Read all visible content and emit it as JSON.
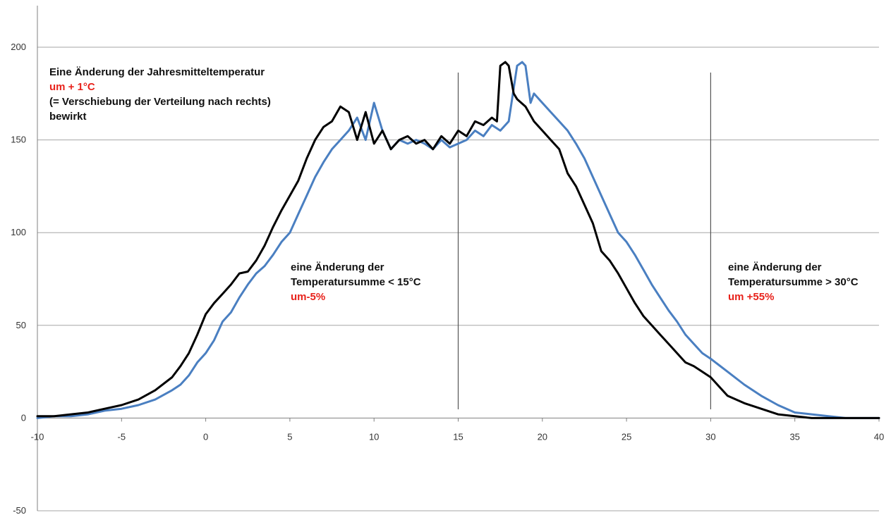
{
  "chart_data": {
    "type": "line",
    "title": "",
    "xlabel": "",
    "ylabel": "",
    "xlim": [
      -10,
      40
    ],
    "ylim": [
      -50,
      200
    ],
    "x_ticks": [
      -10,
      -5,
      0,
      5,
      10,
      15,
      20,
      25,
      30,
      35,
      40
    ],
    "y_ticks": [
      -50,
      0,
      50,
      100,
      150,
      200
    ],
    "grid": "horizontal",
    "legend": "none",
    "vertical_markers": [
      15,
      30
    ],
    "series": [
      {
        "color": "#000000",
        "x": [
          -10,
          -9,
          -8,
          -7,
          -6,
          -5,
          -4,
          -3,
          -2,
          -1.5,
          -1,
          -0.5,
          0,
          0.5,
          1,
          1.5,
          2,
          2.5,
          3,
          3.5,
          4,
          4.5,
          5,
          5.5,
          6,
          6.5,
          7,
          7.5,
          8,
          8.5,
          9,
          9.5,
          10,
          10.5,
          11,
          11.5,
          12,
          12.5,
          13,
          13.5,
          14,
          14.5,
          15,
          15.5,
          16,
          16.5,
          17,
          17.3,
          17.5,
          17.8,
          18,
          18.3,
          18.5,
          19,
          19.5,
          20,
          20.5,
          21,
          21.5,
          22,
          22.5,
          23,
          23.5,
          24,
          24.5,
          25,
          25.5,
          26,
          26.5,
          27,
          27.5,
          28,
          28.5,
          29,
          29.5,
          30,
          31,
          32,
          33,
          34,
          35,
          36,
          37,
          38,
          39,
          40
        ],
        "y": [
          1,
          1,
          2,
          3,
          5,
          7,
          10,
          15,
          22,
          28,
          35,
          45,
          56,
          62,
          67,
          72,
          78,
          79,
          85,
          93,
          103,
          112,
          120,
          128,
          140,
          150,
          157,
          160,
          168,
          165,
          150,
          165,
          148,
          155,
          145,
          150,
          152,
          148,
          150,
          145,
          152,
          148,
          155,
          152,
          160,
          158,
          162,
          160,
          190,
          192,
          190,
          175,
          172,
          168,
          160,
          155,
          150,
          145,
          132,
          125,
          115,
          105,
          90,
          85,
          78,
          70,
          62,
          55,
          50,
          45,
          40,
          35,
          30,
          28,
          25,
          22,
          12,
          8,
          5,
          2,
          1,
          0,
          0,
          0,
          0,
          0
        ]
      },
      {
        "color": "#4a7fc1",
        "x": [
          -10,
          -9,
          -8,
          -7,
          -6,
          -5,
          -4,
          -3,
          -2,
          -1.5,
          -1,
          -0.5,
          0,
          0.5,
          1,
          1.5,
          2,
          2.5,
          3,
          3.5,
          4,
          4.5,
          5,
          5.5,
          6,
          6.5,
          7,
          7.5,
          8,
          8.5,
          9,
          9.5,
          10,
          10.5,
          11,
          11.5,
          12,
          12.5,
          13,
          13.5,
          14,
          14.5,
          15,
          15.5,
          16,
          16.5,
          17,
          17.5,
          18,
          18.5,
          18.8,
          19,
          19.3,
          19.5,
          20,
          20.5,
          21,
          21.5,
          22,
          22.5,
          23,
          23.5,
          24,
          24.5,
          25,
          25.5,
          26,
          26.5,
          27,
          27.5,
          28,
          28.5,
          29,
          29.5,
          30,
          31,
          32,
          33,
          34,
          35,
          36,
          37,
          38,
          39,
          40
        ],
        "y": [
          0,
          1,
          1,
          2,
          4,
          5,
          7,
          10,
          15,
          18,
          23,
          30,
          35,
          42,
          52,
          57,
          65,
          72,
          78,
          82,
          88,
          95,
          100,
          110,
          120,
          130,
          138,
          145,
          150,
          155,
          162,
          150,
          170,
          155,
          145,
          150,
          148,
          150,
          148,
          145,
          150,
          146,
          148,
          150,
          155,
          152,
          158,
          155,
          160,
          190,
          192,
          190,
          170,
          175,
          170,
          165,
          160,
          155,
          148,
          140,
          130,
          120,
          110,
          100,
          95,
          88,
          80,
          72,
          65,
          58,
          52,
          45,
          40,
          35,
          32,
          25,
          18,
          12,
          7,
          3,
          2,
          1,
          0,
          0,
          0
        ]
      }
    ]
  },
  "annotations": {
    "a1": {
      "line1": "Eine Änderung der Jahresmitteltemperatur",
      "line2": "um + 1°C",
      "line3": "(= Verschiebung der Verteilung nach rechts)",
      "line4": "bewirkt"
    },
    "a2": {
      "line1": "eine Änderung der",
      "line2": "Temperatursumme < 15°C",
      "line3": "um-5%"
    },
    "a3": {
      "line1": "eine Änderung der",
      "line2": "Temperatursumme > 30°C",
      "line3": "um +55%"
    }
  }
}
